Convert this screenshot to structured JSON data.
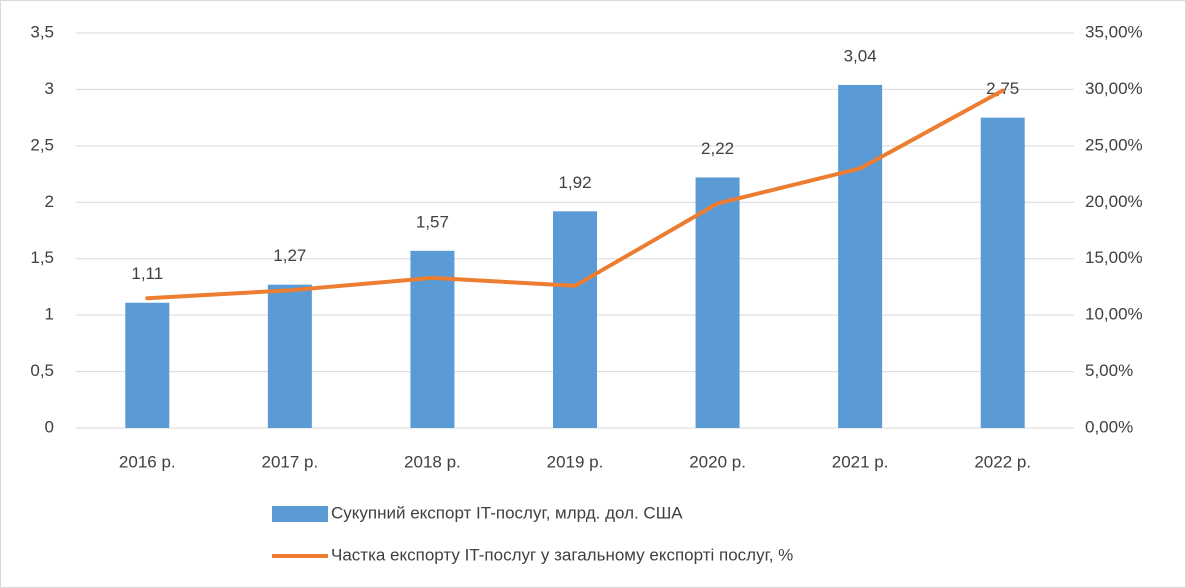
{
  "chart_data": {
    "type": "bar",
    "categories": [
      "2016 р.",
      "2017 р.",
      "2018 р.",
      "2019 р.",
      "2020 р.",
      "2021 р.",
      "2022 р."
    ],
    "series": [
      {
        "name": "Сукупний експорт IT-послуг, млрд. дол. США",
        "type": "bar",
        "color": "#5b9bd5",
        "values": [
          1.11,
          1.27,
          1.57,
          1.92,
          2.22,
          3.04,
          2.75
        ],
        "value_labels": [
          "1,11",
          "1,27",
          "1,57",
          "1,92",
          "2,22",
          "3,04",
          "2,75"
        ]
      },
      {
        "name": "Частка експорту IT-послуг у загальному експорті послуг, %",
        "type": "line",
        "color": "#ed7d31",
        "axis": "y2",
        "values": [
          11.5,
          12.2,
          13.3,
          12.6,
          19.9,
          23.0,
          29.9
        ]
      }
    ],
    "ylim": [
      0,
      3.5
    ],
    "yticks": [
      0,
      {
        "value": 0.5,
        "label": "0,5"
      },
      1,
      {
        "value": 1.5,
        "label": "1,5"
      },
      2,
      {
        "value": 2.5,
        "label": "2,5"
      },
      3,
      {
        "value": 3.5,
        "label": "3,5"
      }
    ],
    "y2lim": [
      0,
      35
    ],
    "y2ticks": [
      {
        "value": 0,
        "label": "0,00%"
      },
      {
        "value": 5,
        "label": "5,00%"
      },
      {
        "value": 10,
        "label": "10,00%"
      },
      {
        "value": 15,
        "label": "15,00%"
      },
      {
        "value": 20,
        "label": "20,00%"
      },
      {
        "value": 25,
        "label": "25,00%"
      },
      {
        "value": 30,
        "label": "30,00%"
      },
      {
        "value": 35,
        "label": "35,00%"
      }
    ],
    "grid": true,
    "legend": "bottom"
  }
}
